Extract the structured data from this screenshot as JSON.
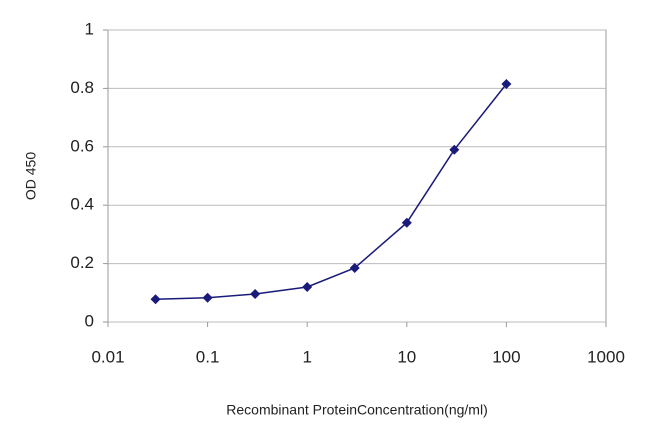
{
  "chart_data": {
    "type": "line",
    "x_label": "Recombinant ProteinConcentration(ng/ml)",
    "y_label": "OD 450",
    "x": [
      0.03,
      0.1,
      0.3,
      1,
      3,
      10,
      30,
      100
    ],
    "values": [
      0.078,
      0.083,
      0.096,
      0.12,
      0.185,
      0.34,
      0.59,
      0.815
    ],
    "color": "#1a1a7a",
    "x_log": true,
    "xlim": [
      0.01,
      1000
    ],
    "xticks": [
      0.01,
      0.1,
      1,
      10,
      100,
      1000
    ],
    "ylim": [
      0,
      1
    ],
    "yticks": [
      0,
      0.2,
      0.4,
      0.6,
      0.8,
      1
    ],
    "grid": true
  }
}
